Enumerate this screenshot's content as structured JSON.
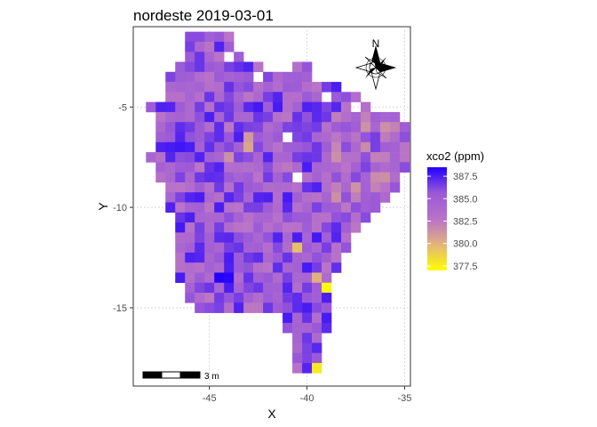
{
  "chart_data": {
    "type": "heatmap",
    "title": "nordeste 2019-03-01",
    "xlabel": "X",
    "ylabel": "Y",
    "xlim": [
      -48.9,
      -34.7
    ],
    "ylim": [
      -18.9,
      -1.0
    ],
    "x_ticks": [
      -45,
      -40,
      -35
    ],
    "x_tick_labels": [
      "-45",
      "-40",
      "-35"
    ],
    "y_ticks": [
      -5,
      -10,
      -15
    ],
    "y_tick_labels": [
      "-5",
      "-10",
      "-15"
    ],
    "grid": true,
    "legend": {
      "title": "xco2 (ppm)",
      "position": "right",
      "min": 377.0,
      "max": 388.5,
      "breaks": [
        387.5,
        385.0,
        382.5,
        380.0,
        377.5
      ],
      "labels": [
        "387.5",
        "385.0",
        "382.5",
        "380.0",
        "377.5"
      ],
      "colors": [
        "#ffff00",
        "#e3b47a",
        "#b872c9",
        "#9b59d8",
        "#2200ff"
      ]
    },
    "cell_size_deg": 0.5,
    "region_rows": [
      [
        -1.5,
        -46.0,
        -44.0
      ],
      [
        -2.0,
        -46.0,
        -44.0
      ],
      [
        -2.5,
        -46.0,
        -44.5
      ],
      [
        -2.5,
        -43.5,
        -43.5
      ],
      [
        -3.0,
        -46.5,
        -42.5
      ],
      [
        -3.0,
        -40.5,
        -40.0
      ],
      [
        -3.5,
        -47.0,
        -40.0
      ],
      [
        -4.0,
        -47.0,
        -38.5
      ],
      [
        -4.5,
        -47.0,
        -37.5
      ],
      [
        -5.0,
        -48.0,
        -37.0
      ],
      [
        -5.5,
        -47.5,
        -35.5
      ],
      [
        -6.0,
        -47.5,
        -35.0
      ],
      [
        -6.5,
        -47.5,
        -35.0
      ],
      [
        -7.0,
        -47.5,
        -35.0
      ],
      [
        -7.5,
        -48.0,
        -35.0
      ],
      [
        -8.0,
        -47.5,
        -35.0
      ],
      [
        -8.5,
        -47.5,
        -35.5
      ],
      [
        -9.0,
        -47.0,
        -35.5
      ],
      [
        -9.5,
        -47.0,
        -36.0
      ],
      [
        -10.0,
        -47.0,
        -36.5
      ],
      [
        -10.5,
        -46.5,
        -37.0
      ],
      [
        -11.0,
        -46.5,
        -37.5
      ],
      [
        -11.5,
        -46.5,
        -38.0
      ],
      [
        -12.0,
        -46.5,
        -38.0
      ],
      [
        -12.5,
        -46.5,
        -38.5
      ],
      [
        -13.0,
        -46.5,
        -38.5
      ],
      [
        -13.5,
        -46.5,
        -39.0
      ],
      [
        -14.0,
        -46.0,
        -39.0
      ],
      [
        -14.5,
        -46.0,
        -39.0
      ],
      [
        -15.0,
        -45.5,
        -39.0
      ],
      [
        -15.5,
        -41.0,
        -39.0
      ],
      [
        -16.0,
        -41.0,
        -39.0
      ],
      [
        -16.5,
        -40.5,
        -39.5
      ],
      [
        -17.0,
        -40.5,
        -39.5
      ],
      [
        -17.5,
        -40.5,
        -39.5
      ],
      [
        -18.0,
        -40.5,
        -39.5
      ]
    ],
    "highlight_cells": [
      {
        "x": -44.5,
        "y": -13.5,
        "value": 388.5
      },
      {
        "x": -44.0,
        "y": -13.5,
        "value": 388.3
      },
      {
        "x": -39.0,
        "y": -14.0,
        "value": 377.2
      },
      {
        "x": -39.5,
        "y": -18.0,
        "value": 377.8
      },
      {
        "x": -40.5,
        "y": -12.0,
        "value": 379.5
      },
      {
        "x": -39.5,
        "y": -13.5,
        "value": 380.0
      },
      {
        "x": -43.0,
        "y": -7.0,
        "value": 380.5
      },
      {
        "x": -43.0,
        "y": -6.5,
        "value": 381.0
      },
      {
        "x": -44.0,
        "y": -7.5,
        "value": 381.5
      },
      {
        "x": -35.5,
        "y": -6.0,
        "value": 382.0
      },
      {
        "x": -46.5,
        "y": -7.0,
        "value": 387.8
      },
      {
        "x": -45.5,
        "y": -9.5,
        "value": 387.6
      },
      {
        "x": -40.0,
        "y": -15.0,
        "value": 387.6
      },
      {
        "x": -42.5,
        "y": -5.0,
        "value": 387.7
      }
    ],
    "scale_bar_label": "3 m",
    "north_arrow_label": "N"
  }
}
